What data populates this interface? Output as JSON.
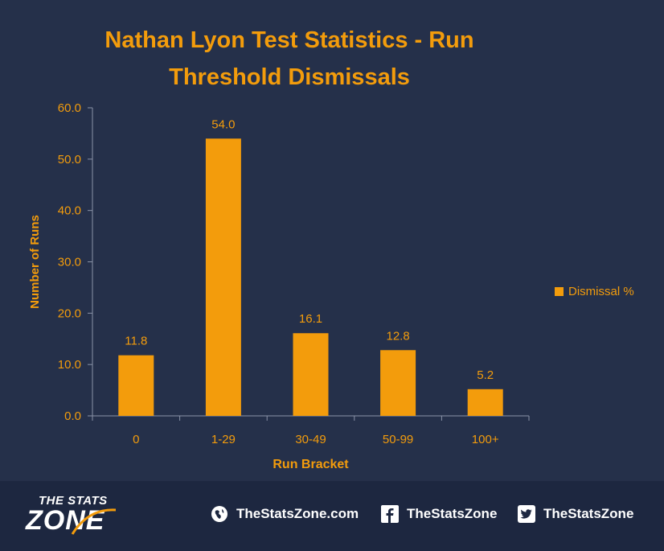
{
  "chart_data": {
    "type": "bar",
    "title_lines": [
      "Nathan Lyon Test Statistics - Run",
      "Threshold Dismissals"
    ],
    "categories": [
      "0",
      "1-29",
      "30-49",
      "50-99",
      "100+"
    ],
    "series": [
      {
        "name": "Dismissal %",
        "values": [
          11.8,
          54.0,
          16.1,
          12.8,
          5.2
        ],
        "color": "#f39c0c"
      }
    ],
    "data_labels": [
      "11.8",
      "54.0",
      "16.1",
      "12.8",
      "5.2"
    ],
    "xlabel": "Run Bracket",
    "ylabel": "Number of Runs",
    "ylim": [
      0,
      60
    ],
    "yticks": [
      "0.0",
      "10.0",
      "20.0",
      "30.0",
      "40.0",
      "50.0",
      "60.0"
    ],
    "grid": false,
    "legend_position": "right"
  },
  "colors": {
    "background": "#25304a",
    "footer": "#1d2740",
    "accent": "#f39c0c",
    "axis": "#8a93a8"
  },
  "footer": {
    "logo_top": "THE STATS",
    "logo_bottom": "ZONE",
    "website": "TheStatsZone.com",
    "facebook": "TheStatsZone",
    "twitter": "TheStatsZone",
    "icons": [
      "globe-icon",
      "facebook-icon",
      "twitter-icon"
    ]
  }
}
